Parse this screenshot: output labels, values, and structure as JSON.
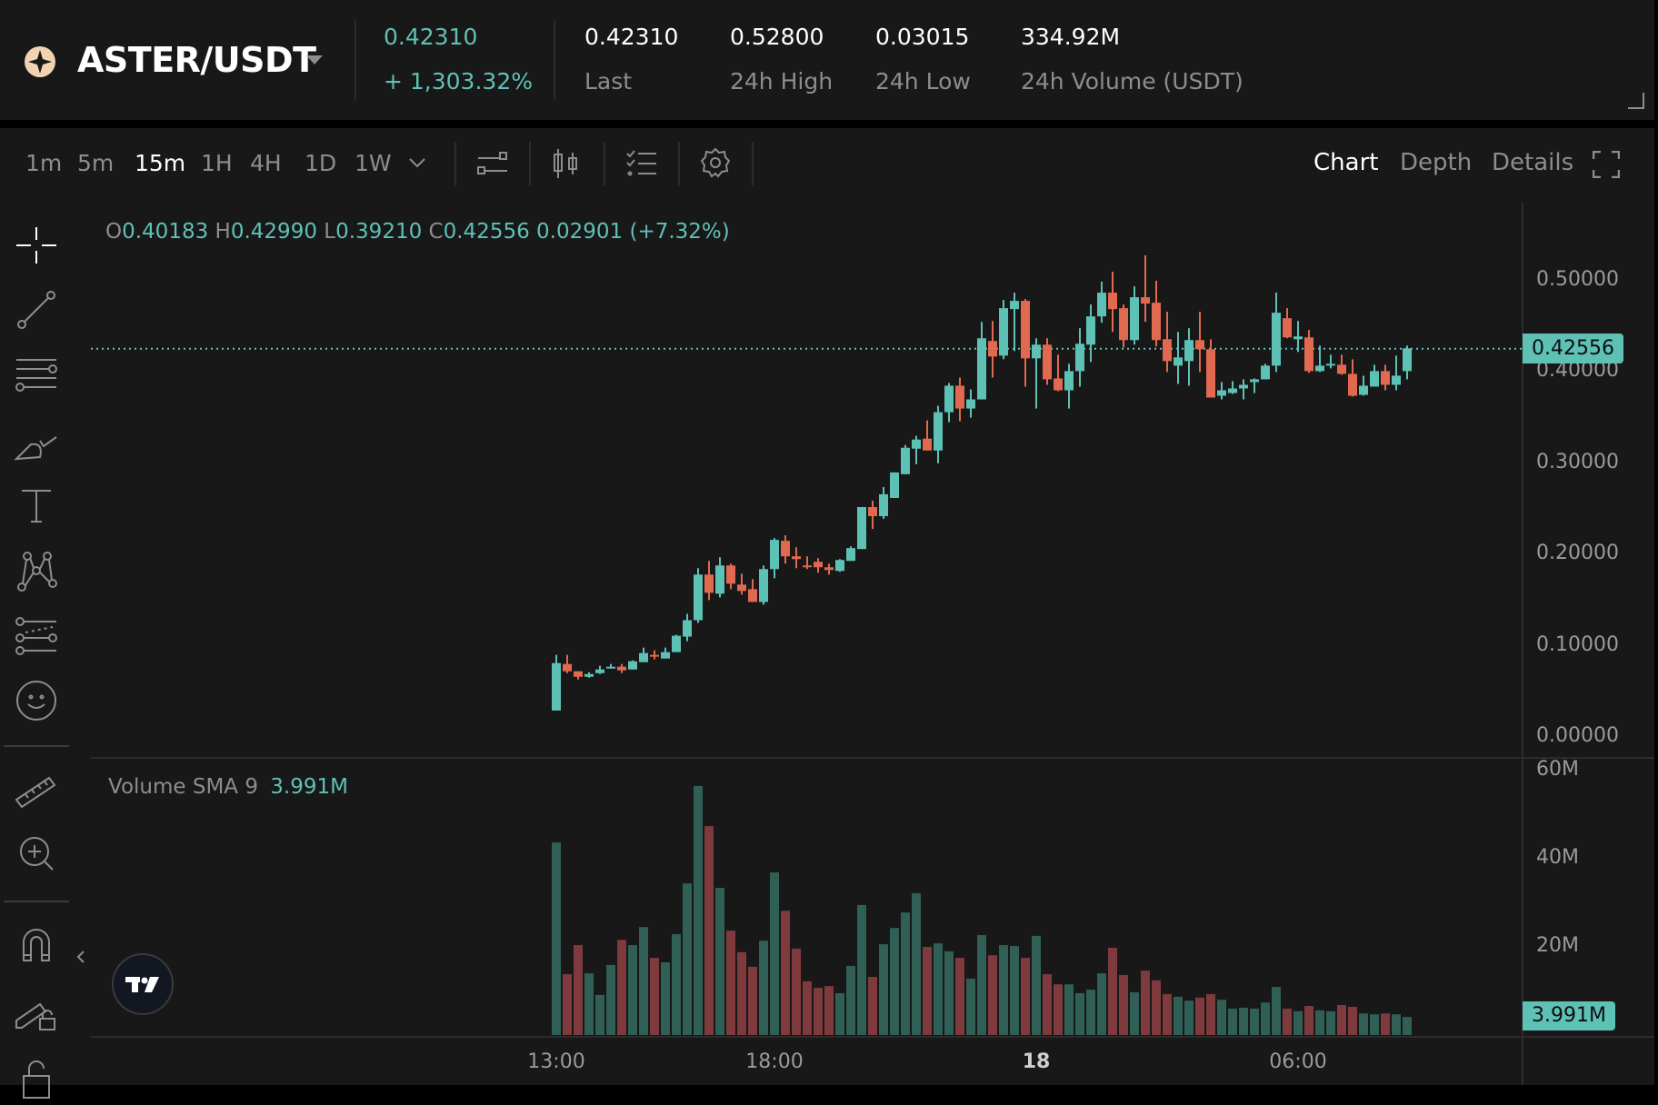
{
  "header": {
    "pair": "ASTER/USDT",
    "icon": "aster-logo",
    "price": "0.42310",
    "change": "+ 1,303.32%",
    "stats": [
      {
        "value": "0.42310",
        "label": "Last"
      },
      {
        "value": "0.52800",
        "label": "24h High"
      },
      {
        "value": "0.03015",
        "label": "24h Low"
      },
      {
        "value": "334.92M",
        "label": "24h Volume (USDT)"
      }
    ]
  },
  "toolbar": {
    "timeframes": [
      "1m",
      "5m",
      "15m",
      "1H",
      "4H",
      "1D",
      "1W"
    ],
    "active_timeframe": "15m",
    "icons": [
      "indicators-icon",
      "candle-type-icon",
      "templates-icon",
      "settings-icon"
    ],
    "tabs": [
      "Chart",
      "Depth",
      "Details"
    ],
    "active_tab": "Chart"
  },
  "drawing_tools": [
    "crosshair-icon",
    "trend-line-icon",
    "horizontal-lines-icon",
    "brush-icon",
    "text-icon",
    "pattern-icon",
    "fib-icon",
    "emoji-icon",
    "ruler-icon",
    "zoom-in-icon",
    "magnet-icon",
    "lock-drawing-icon",
    "lock-icon"
  ],
  "legend": {
    "o_label": "O",
    "o": "0.40183",
    "h_label": "H",
    "h": "0.42990",
    "l_label": "L",
    "l": "0.39210",
    "c_label": "C",
    "c": "0.42556",
    "change": "0.02901 (+7.32%)"
  },
  "volume_legend": {
    "label": "Volume SMA 9",
    "value": "3.991M"
  },
  "last_price_badge": "0.42556",
  "volume_badge": "3.991M",
  "colors": {
    "up": "#5ec1b6",
    "down": "#e0694f",
    "vol_up": "#2f5f55",
    "vol_down": "#7f3a3e"
  },
  "chart_data": {
    "type": "candlestick",
    "interval": "15m",
    "price_ticks": [
      "0.50000",
      "0.40000",
      "0.30000",
      "0.20000",
      "0.10000",
      "0.00000"
    ],
    "price_range": [
      0,
      0.5
    ],
    "volume_ticks": [
      "60M",
      "40M",
      "20M"
    ],
    "volume_unit": "M",
    "time_ticks": [
      {
        "label": "13:00",
        "index": 0
      },
      {
        "label": "18:00",
        "index": 20
      },
      {
        "label": "18",
        "index": 44,
        "bold": true
      },
      {
        "label": "06:00",
        "index": 68
      }
    ],
    "last_price": 0.42556,
    "ohlc": [
      [
        0.029,
        0.09,
        0.029,
        0.081
      ],
      [
        0.08,
        0.09,
        0.07,
        0.072
      ],
      [
        0.072,
        0.072,
        0.063,
        0.066
      ],
      [
        0.066,
        0.071,
        0.065,
        0.069
      ],
      [
        0.07,
        0.078,
        0.069,
        0.074
      ],
      [
        0.076,
        0.08,
        0.075,
        0.077
      ],
      [
        0.077,
        0.08,
        0.07,
        0.073
      ],
      [
        0.074,
        0.084,
        0.074,
        0.083
      ],
      [
        0.082,
        0.098,
        0.082,
        0.092
      ],
      [
        0.09,
        0.095,
        0.085,
        0.088
      ],
      [
        0.086,
        0.098,
        0.086,
        0.093
      ],
      [
        0.093,
        0.112,
        0.093,
        0.111
      ],
      [
        0.11,
        0.135,
        0.105,
        0.128
      ],
      [
        0.128,
        0.185,
        0.125,
        0.178
      ],
      [
        0.178,
        0.193,
        0.15,
        0.158
      ],
      [
        0.157,
        0.197,
        0.153,
        0.188
      ],
      [
        0.188,
        0.19,
        0.162,
        0.168
      ],
      [
        0.167,
        0.179,
        0.156,
        0.16
      ],
      [
        0.162,
        0.173,
        0.148,
        0.148
      ],
      [
        0.148,
        0.188,
        0.145,
        0.184
      ],
      [
        0.184,
        0.218,
        0.174,
        0.216
      ],
      [
        0.215,
        0.221,
        0.19,
        0.198
      ],
      [
        0.198,
        0.208,
        0.185,
        0.195
      ],
      [
        0.188,
        0.198,
        0.184,
        0.187
      ],
      [
        0.192,
        0.196,
        0.18,
        0.186
      ],
      [
        0.186,
        0.19,
        0.178,
        0.183
      ],
      [
        0.182,
        0.195,
        0.181,
        0.194
      ],
      [
        0.193,
        0.209,
        0.193,
        0.207
      ],
      [
        0.206,
        0.252,
        0.206,
        0.252
      ],
      [
        0.252,
        0.259,
        0.228,
        0.242
      ],
      [
        0.242,
        0.274,
        0.239,
        0.266
      ],
      [
        0.262,
        0.29,
        0.262,
        0.29
      ],
      [
        0.288,
        0.32,
        0.288,
        0.317
      ],
      [
        0.316,
        0.33,
        0.299,
        0.326
      ],
      [
        0.327,
        0.347,
        0.314,
        0.314
      ],
      [
        0.314,
        0.363,
        0.3,
        0.356
      ],
      [
        0.356,
        0.388,
        0.345,
        0.385
      ],
      [
        0.385,
        0.394,
        0.346,
        0.36
      ],
      [
        0.36,
        0.381,
        0.35,
        0.37
      ],
      [
        0.37,
        0.455,
        0.37,
        0.437
      ],
      [
        0.434,
        0.456,
        0.394,
        0.417
      ],
      [
        0.418,
        0.479,
        0.414,
        0.47
      ],
      [
        0.469,
        0.487,
        0.423,
        0.478
      ],
      [
        0.478,
        0.48,
        0.384,
        0.415
      ],
      [
        0.415,
        0.437,
        0.36,
        0.43
      ],
      [
        0.43,
        0.437,
        0.386,
        0.392
      ],
      [
        0.393,
        0.419,
        0.379,
        0.38
      ],
      [
        0.38,
        0.409,
        0.36,
        0.401
      ],
      [
        0.401,
        0.448,
        0.384,
        0.431
      ],
      [
        0.43,
        0.474,
        0.411,
        0.461
      ],
      [
        0.461,
        0.499,
        0.454,
        0.487
      ],
      [
        0.487,
        0.51,
        0.444,
        0.469
      ],
      [
        0.47,
        0.474,
        0.427,
        0.435
      ],
      [
        0.435,
        0.494,
        0.43,
        0.482
      ],
      [
        0.482,
        0.528,
        0.455,
        0.475
      ],
      [
        0.476,
        0.5,
        0.428,
        0.435
      ],
      [
        0.436,
        0.466,
        0.4,
        0.412
      ],
      [
        0.407,
        0.444,
        0.387,
        0.416
      ],
      [
        0.412,
        0.448,
        0.385,
        0.435
      ],
      [
        0.435,
        0.466,
        0.4,
        0.425
      ],
      [
        0.425,
        0.436,
        0.372,
        0.372
      ],
      [
        0.374,
        0.389,
        0.37,
        0.38
      ],
      [
        0.377,
        0.39,
        0.376,
        0.382
      ],
      [
        0.382,
        0.392,
        0.37,
        0.386
      ],
      [
        0.389,
        0.393,
        0.377,
        0.392
      ],
      [
        0.392,
        0.409,
        0.392,
        0.407
      ],
      [
        0.407,
        0.487,
        0.4,
        0.465
      ],
      [
        0.459,
        0.47,
        0.437,
        0.438
      ],
      [
        0.436,
        0.456,
        0.422,
        0.439
      ],
      [
        0.438,
        0.446,
        0.399,
        0.401
      ],
      [
        0.401,
        0.429,
        0.4,
        0.407
      ],
      [
        0.408,
        0.419,
        0.404,
        0.409
      ],
      [
        0.408,
        0.419,
        0.397,
        0.398
      ],
      [
        0.398,
        0.414,
        0.373,
        0.374
      ],
      [
        0.375,
        0.396,
        0.374,
        0.385
      ],
      [
        0.384,
        0.408,
        0.384,
        0.401
      ],
      [
        0.401,
        0.408,
        0.38,
        0.386
      ],
      [
        0.386,
        0.418,
        0.38,
        0.396
      ],
      [
        0.401,
        0.429,
        0.392,
        0.426
      ]
    ],
    "volume": [
      43.7,
      13.8,
      20.4,
      14.0,
      9.1,
      15.9,
      21.6,
      20.4,
      24.5,
      17.5,
      16.5,
      22.9,
      34.4,
      56.5,
      47.4,
      33.4,
      23.7,
      18.8,
      15.5,
      21.4,
      36.9,
      28.2,
      19.6,
      12.2,
      10.7,
      11.1,
      9.5,
      15.7,
      29.5,
      13.2,
      20.6,
      24.3,
      27.8,
      32.2,
      20.0,
      20.8,
      19.0,
      17.5,
      12.8,
      22.7,
      18.1,
      20.4,
      20.2,
      17.5,
      22.5,
      13.8,
      11.5,
      11.5,
      9.5,
      10.3,
      14.0,
      19.8,
      13.6,
      9.7,
      14.6,
      12.4,
      9.3,
      8.7,
      7.8,
      8.5,
      9.3,
      8.0,
      6.0,
      6.2,
      6.0,
      7.4,
      10.9,
      6.0,
      5.4,
      6.6,
      5.6,
      5.4,
      6.8,
      6.4,
      4.9,
      4.7,
      4.9,
      4.7,
      4.1
    ]
  }
}
